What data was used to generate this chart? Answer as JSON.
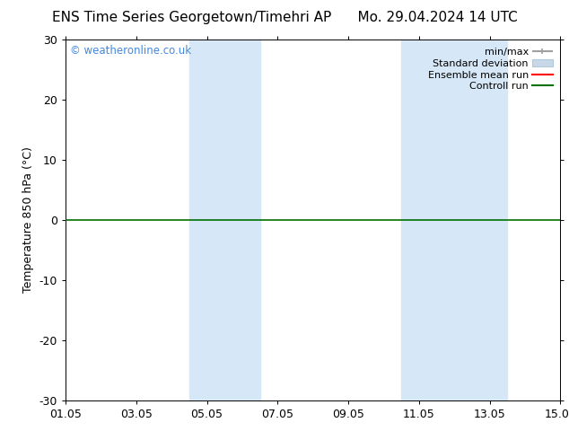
{
  "title_left": "ENS Time Series Georgetown/Timehri AP",
  "title_right": "Mo. 29.04.2024 14 UTC",
  "ylabel": "Temperature 850 hPa (°C)",
  "xlim_num": [
    0,
    14
  ],
  "ylim": [
    -30,
    30
  ],
  "yticks": [
    -30,
    -20,
    -10,
    0,
    10,
    20,
    30
  ],
  "xtick_positions": [
    0,
    2,
    4,
    6,
    8,
    10,
    12,
    14
  ],
  "xtick_labels": [
    "01.05",
    "03.05",
    "05.05",
    "07.05",
    "09.05",
    "11.05",
    "13.05",
    "15.05"
  ],
  "shaded_regions": [
    {
      "xmin": 3.5,
      "xmax": 5.5
    },
    {
      "xmin": 9.5,
      "xmax": 12.5
    }
  ],
  "shaded_color": "#d6e8f7",
  "control_run_y": 0.0,
  "control_run_color": "#007000",
  "ensemble_mean_color": "#ff0000",
  "min_max_color": "#a0a0a0",
  "std_dev_color": "#c8d8e8",
  "std_dev_edge_color": "#b0c8d8",
  "watermark_text": "© weatheronline.co.uk",
  "watermark_color": "#4488dd",
  "background_color": "#ffffff",
  "title_fontsize": 11,
  "axis_fontsize": 9,
  "tick_fontsize": 9,
  "legend_fontsize": 8
}
